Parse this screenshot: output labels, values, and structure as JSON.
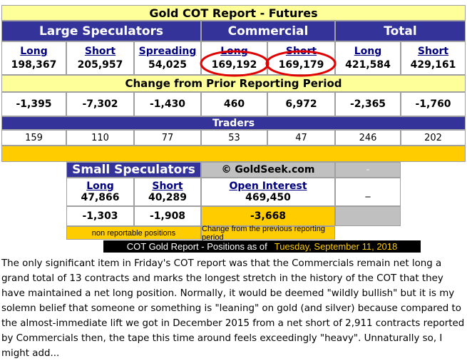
{
  "title": "Gold COT Report - Futures",
  "groups": [
    "Large Speculators",
    "Commercial",
    "Total"
  ],
  "positions": {
    "labels": [
      "Long",
      "Short",
      "Spreading",
      "Long",
      "Short",
      "Long",
      "Short"
    ],
    "values": [
      "198,367",
      "205,957",
      "54,025",
      "169,192",
      "169,179",
      "421,584",
      "429,161"
    ]
  },
  "change_header": "Change from Prior Reporting Period",
  "changes": [
    "-1,395",
    "-7,302",
    "-1,430",
    "460",
    "6,972",
    "-2,365",
    "-1,760"
  ],
  "traders_header": "Traders",
  "traders": [
    "159",
    "110",
    "77",
    "53",
    "47",
    "246",
    "202"
  ],
  "small_speculators": {
    "title": "Small Speculators",
    "credit": "© GoldSeek.com",
    "labels": [
      "Long",
      "Short",
      "Open Interest"
    ],
    "values": [
      "47,866",
      "40,289",
      "469,450"
    ],
    "changes": [
      "-1,303",
      "-1,908",
      "-3,668"
    ],
    "notes": [
      "non reportable positions",
      "Change from the previous reporting period"
    ],
    "placeholders": [
      "-",
      "_"
    ]
  },
  "footer": {
    "label": "COT Gold Report - Positions as of",
    "date": "Tuesday, September 11, 2018"
  },
  "article": {
    "text": "The only significant item in Friday's COT report was that the Commercials remain net long a grand total of 13 contracts and marks the longest stretch in the history of the COT that they have maintained a net long position. Normally, it would be deemed \"wildly bullish\" but it is my solemn belief that someone or something is \"leaning\" on gold (and silver) because compared to the almost-immediate lift we got in December 2015 from a net short of 2,911 contracts reported by Commercials then, the tape this time around feels exceedingly \"heavy\". Unnaturally so, I might add..."
  }
}
